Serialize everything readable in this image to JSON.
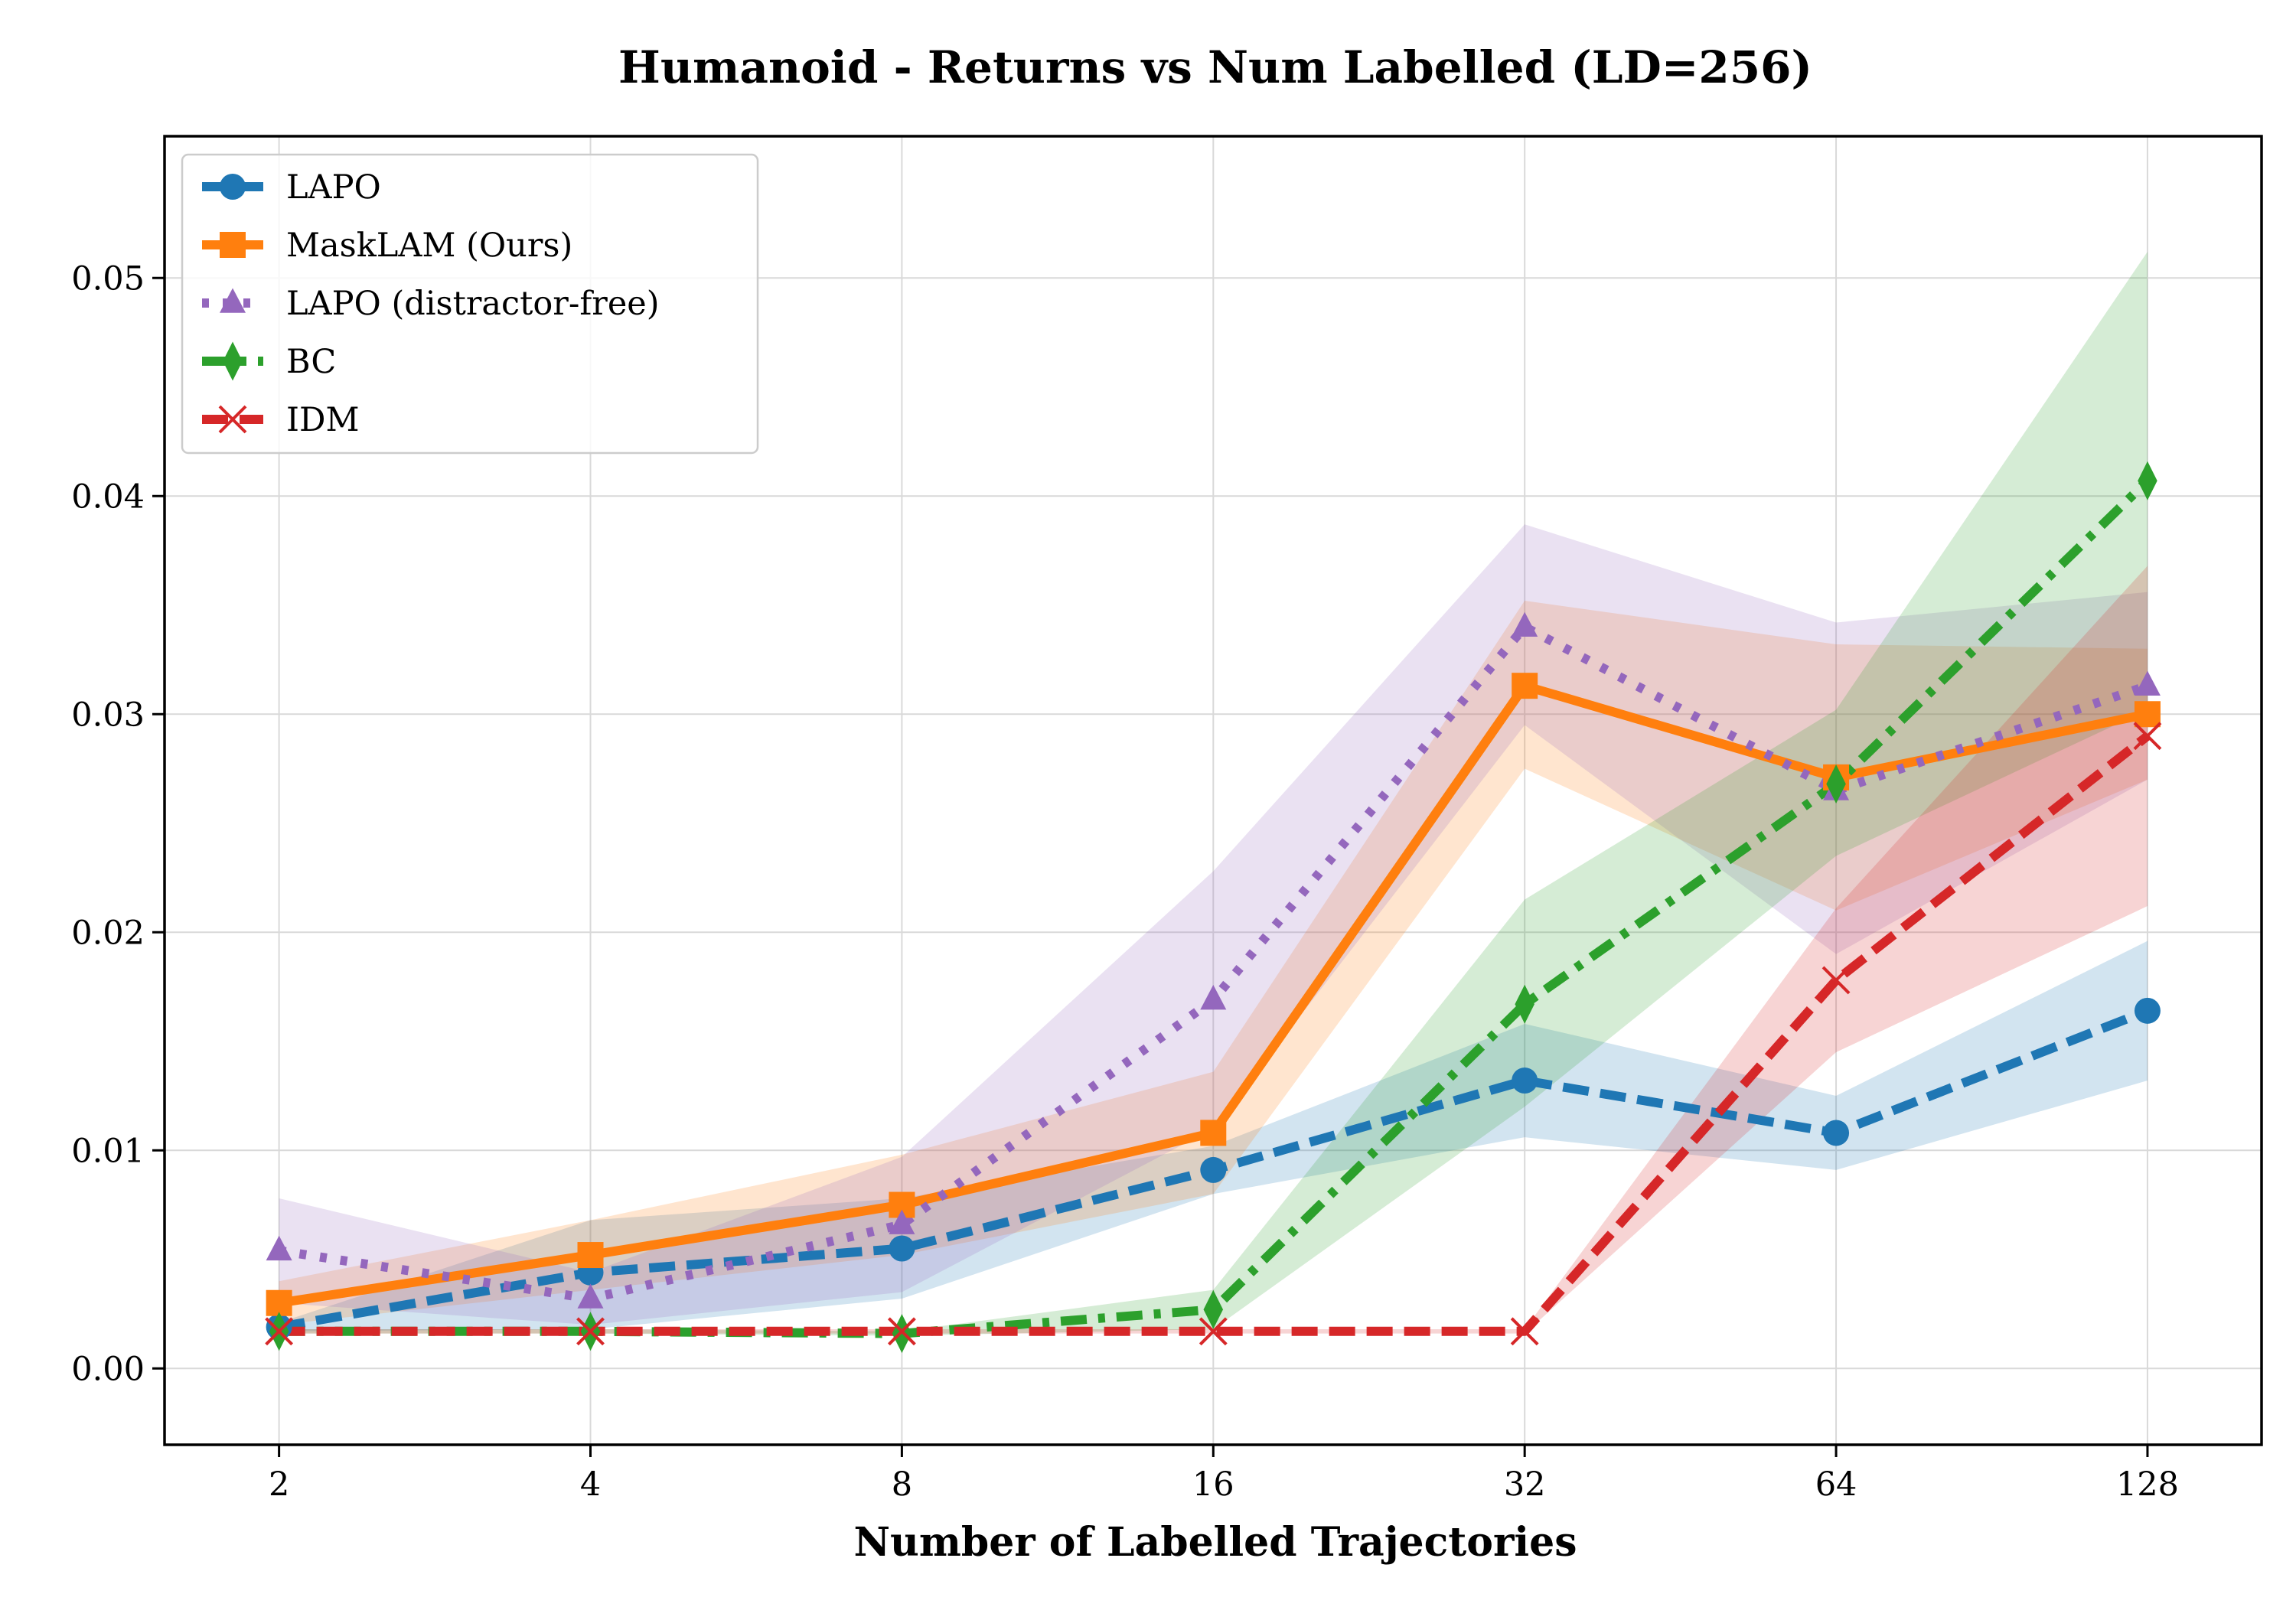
{
  "chart_data": {
    "type": "line",
    "title": "Humanoid - Returns vs Num Labelled (LD=256)",
    "xlabel": "Number of Labelled Trajectories",
    "ylabel": "",
    "x_scale": "log2",
    "categories": [
      "2",
      "4",
      "8",
      "16",
      "32",
      "64",
      "128"
    ],
    "x": [
      2,
      4,
      8,
      16,
      32,
      64,
      128
    ],
    "xlim": [
      1.55,
      165
    ],
    "ylim": [
      -0.0035,
      0.0565
    ],
    "yticks": [
      0.0,
      0.01,
      0.02,
      0.03,
      0.04,
      0.05
    ],
    "ytick_labels": [
      "0.00",
      "0.01",
      "0.02",
      "0.03",
      "0.04",
      "0.05"
    ],
    "grid": true,
    "legend_position": "top-left",
    "series": [
      {
        "name": "LAPO",
        "color": "#1f77b4",
        "dash": "dashed",
        "marker": "circle",
        "values": [
          0.0019,
          0.0044,
          0.0055,
          0.0091,
          0.0132,
          0.0108,
          0.0164
        ],
        "lower": [
          0.0017,
          0.0018,
          0.0032,
          0.008,
          0.0106,
          0.0091,
          0.0132
        ],
        "upper": [
          0.0021,
          0.0068,
          0.0078,
          0.0102,
          0.0158,
          0.0125,
          0.0196
        ]
      },
      {
        "name": "MaskLAM (Ours)",
        "color": "#ff7f0e",
        "dash": "solid",
        "marker": "square",
        "values": [
          0.003,
          0.0052,
          0.0075,
          0.0108,
          0.0313,
          0.0271,
          0.03
        ],
        "lower": [
          0.002,
          0.0036,
          0.0052,
          0.008,
          0.0275,
          0.021,
          0.027
        ],
        "upper": [
          0.004,
          0.0068,
          0.0098,
          0.0136,
          0.0352,
          0.0332,
          0.033
        ]
      },
      {
        "name": "LAPO (distractor-free)",
        "color": "#9467bd",
        "dash": "dotted",
        "marker": "triangle",
        "values": [
          0.0054,
          0.0032,
          0.0066,
          0.0169,
          0.034,
          0.0265,
          0.0313
        ],
        "lower": [
          0.003,
          0.002,
          0.0035,
          0.011,
          0.0295,
          0.019,
          0.027
        ],
        "upper": [
          0.0078,
          0.0044,
          0.0097,
          0.0228,
          0.0387,
          0.0342,
          0.0356
        ]
      },
      {
        "name": "BC",
        "color": "#2ca02c",
        "dash": "dashdot",
        "marker": "diamond",
        "values": [
          0.0017,
          0.0017,
          0.0016,
          0.0027,
          0.0167,
          0.0268,
          0.0407
        ],
        "lower": [
          0.0016,
          0.0016,
          0.0015,
          0.0018,
          0.012,
          0.0235,
          0.0302
        ],
        "upper": [
          0.0018,
          0.0018,
          0.0017,
          0.0036,
          0.0215,
          0.0302,
          0.0512
        ]
      },
      {
        "name": "IDM",
        "color": "#d62728",
        "dash": "dashed",
        "marker": "x",
        "values": [
          0.0017,
          0.0017,
          0.0017,
          0.0017,
          0.0017,
          0.0178,
          0.029
        ],
        "lower": [
          0.0016,
          0.0016,
          0.0016,
          0.0016,
          0.0016,
          0.0145,
          0.0212
        ],
        "upper": [
          0.0018,
          0.0018,
          0.0018,
          0.0018,
          0.0018,
          0.0211,
          0.0368
        ]
      }
    ]
  }
}
